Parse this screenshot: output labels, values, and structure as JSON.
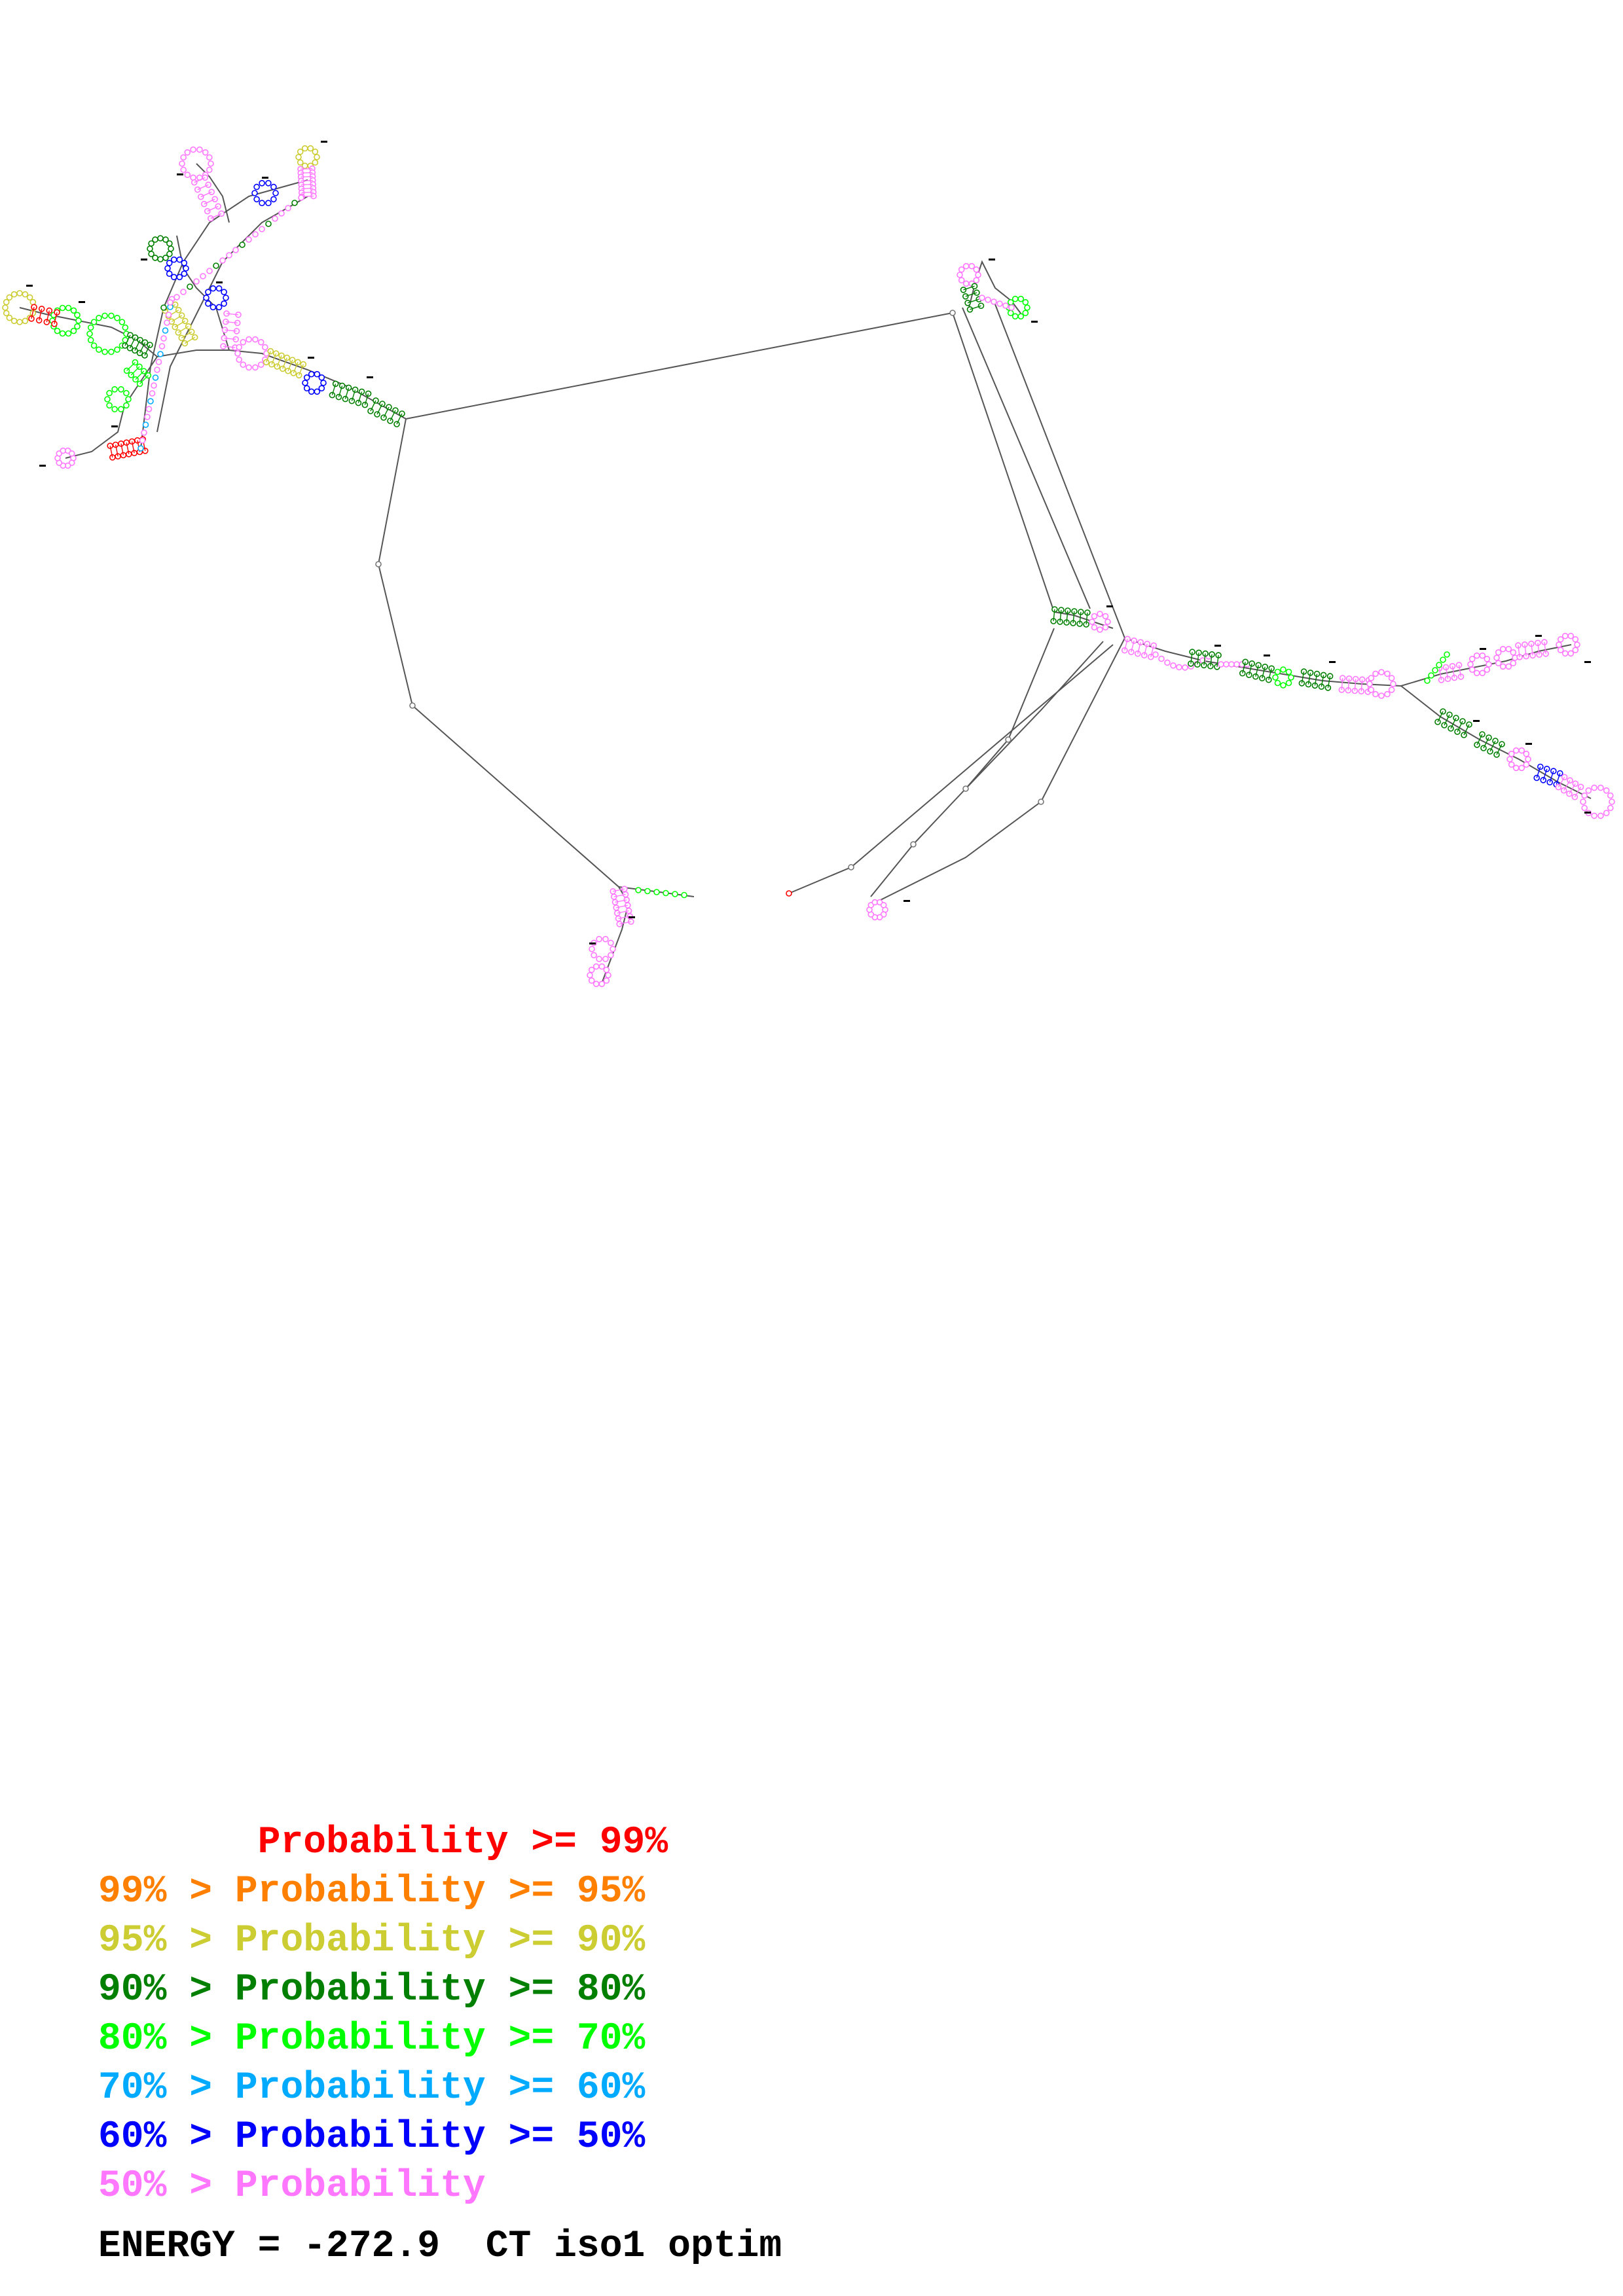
{
  "diagram": {
    "type": "rna-secondary-structure",
    "nucleotide_color_scheme": "pairing probability",
    "backbone_color": "#555555"
  },
  "legend": [
    {
      "prefix": "       ",
      "label": "Probability >= 99%",
      "color": "#ff0000"
    },
    {
      "prefix": "99% > ",
      "label": "Probability >= 95%",
      "color": "#ff7f00"
    },
    {
      "prefix": "95% > ",
      "label": "Probability >= 90%",
      "color": "#cccc33"
    },
    {
      "prefix": "90% > ",
      "label": "Probability >= 80%",
      "color": "#007f00"
    },
    {
      "prefix": "80% > ",
      "label": "Probability >= 70%",
      "color": "#00ff00"
    },
    {
      "prefix": "70% > ",
      "label": "Probability >= 60%",
      "color": "#00aaff"
    },
    {
      "prefix": "60% > ",
      "label": "Probability >= 50%",
      "color": "#0000ff"
    },
    {
      "prefix": "50% > ",
      "label": "Probability",
      "color": "#ff77ff"
    }
  ],
  "footer": {
    "energy_text": "ENERGY = -272.9  CT iso1 optim"
  }
}
